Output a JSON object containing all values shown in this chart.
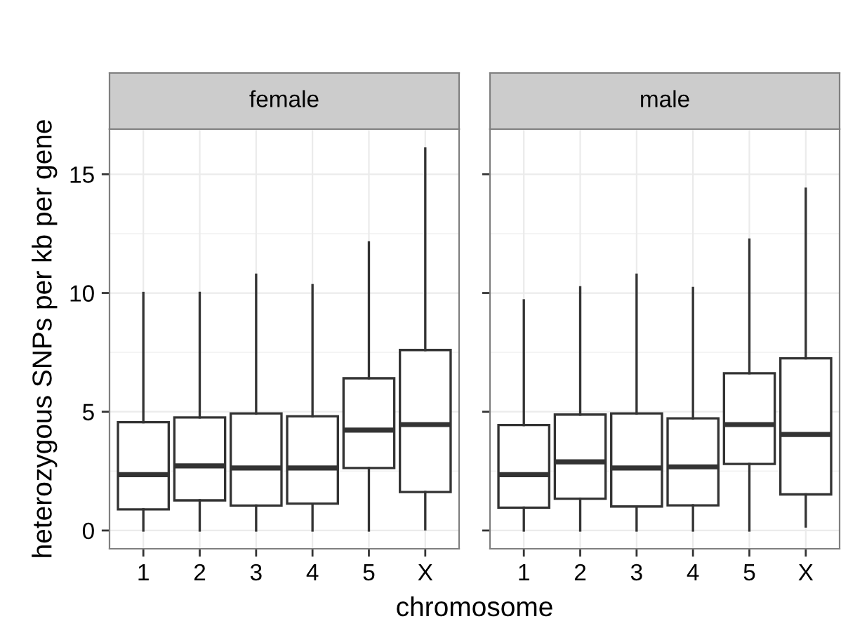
{
  "chart_data": [
    {
      "type": "box",
      "title": "female",
      "ylabel": "heterozygous SNPs per kb per gene",
      "xlabel": "chromosome",
      "categories": [
        "1",
        "2",
        "3",
        "4",
        "5",
        "X"
      ],
      "ylim": [
        -0.77,
        16.9
      ],
      "yticks": [
        0,
        5,
        10,
        15
      ],
      "grid": true,
      "color": "#333333",
      "boxes": [
        {
          "low": 0,
          "q1": 0.89,
          "median": 2.35,
          "q3": 4.56,
          "high": 10.0
        },
        {
          "low": 0,
          "q1": 1.27,
          "median": 2.72,
          "q3": 4.76,
          "high": 10.0
        },
        {
          "low": 0,
          "q1": 1.05,
          "median": 2.63,
          "q3": 4.93,
          "high": 10.77
        },
        {
          "low": 0,
          "q1": 1.13,
          "median": 2.63,
          "q3": 4.81,
          "high": 10.33
        },
        {
          "low": 0,
          "q1": 2.63,
          "median": 4.23,
          "q3": 6.41,
          "high": 12.13
        },
        {
          "low": 0.05,
          "q1": 1.62,
          "median": 4.46,
          "q3": 7.6,
          "high": 16.08
        }
      ]
    },
    {
      "type": "box",
      "title": "male",
      "categories": [
        "1",
        "2",
        "3",
        "4",
        "5",
        "X"
      ],
      "ylim": [
        -0.77,
        16.9
      ],
      "yticks": [
        0,
        5,
        10,
        15
      ],
      "grid": true,
      "tick_labels": "x",
      "color": "#333333",
      "boxes": [
        {
          "low": 0,
          "q1": 0.96,
          "median": 2.35,
          "q3": 4.44,
          "high": 9.69
        },
        {
          "low": 0,
          "q1": 1.34,
          "median": 2.89,
          "q3": 4.88,
          "high": 10.24
        },
        {
          "low": 0,
          "q1": 1.01,
          "median": 2.63,
          "q3": 4.93,
          "high": 10.77
        },
        {
          "low": 0,
          "q1": 1.06,
          "median": 2.68,
          "q3": 4.72,
          "high": 10.21
        },
        {
          "low": 0,
          "q1": 2.8,
          "median": 4.46,
          "q3": 6.62,
          "high": 12.25
        },
        {
          "low": 0.17,
          "q1": 1.52,
          "median": 4.04,
          "q3": 7.25,
          "high": 14.39
        }
      ]
    }
  ]
}
